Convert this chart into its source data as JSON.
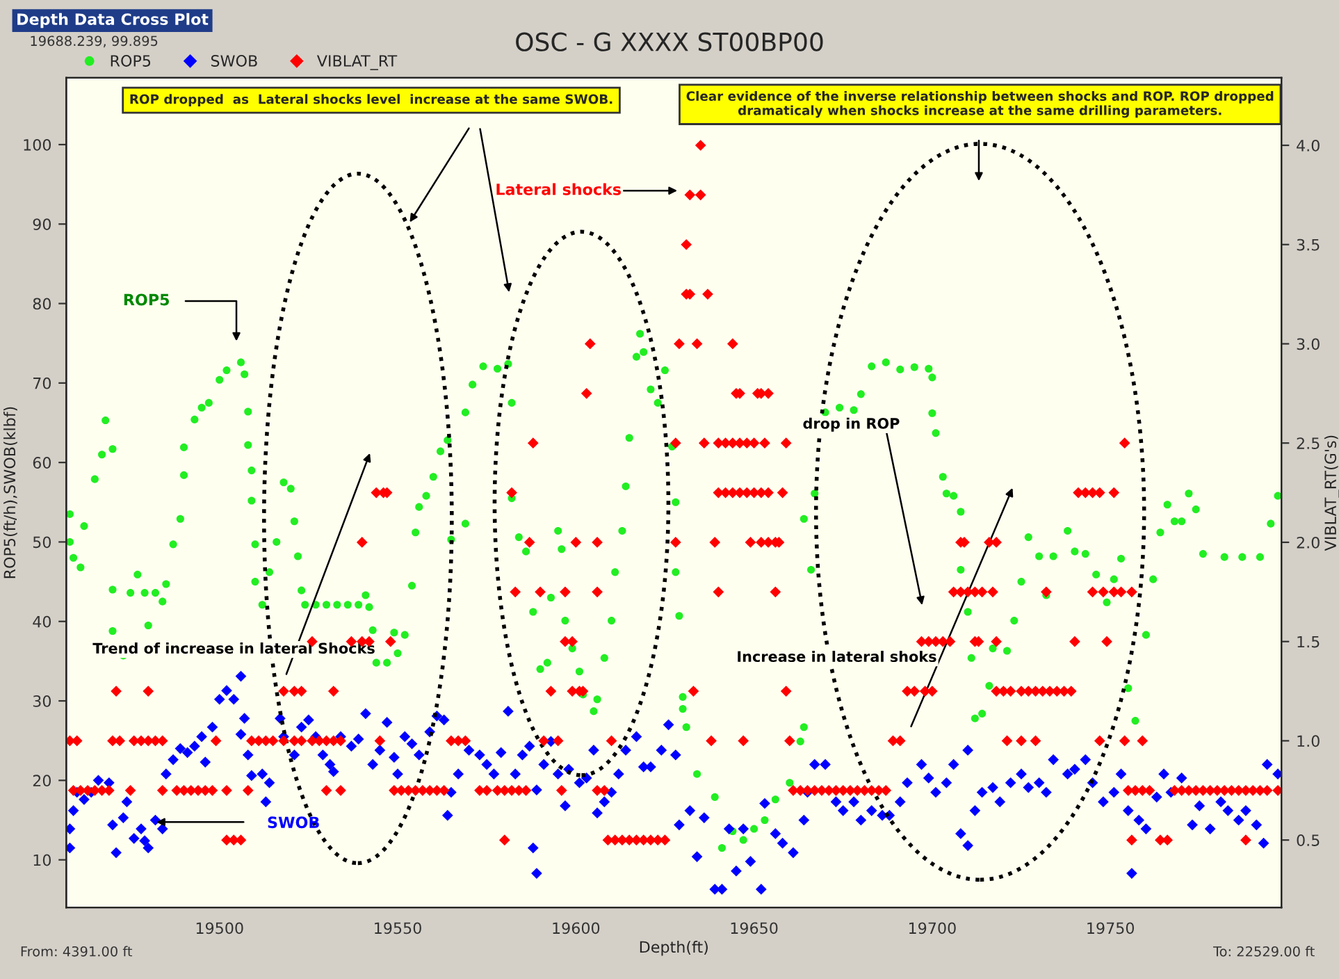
{
  "chart_data": {
    "type": "scatter",
    "title": "OSC - G XXXX ST00BP00",
    "xlabel": "Depth(ft)",
    "ylabel": "ROP5(ft/h),SWOB(klbf)",
    "y2label": "VIBLAT_RT(G's)",
    "xlim": [
      19457,
      19798
    ],
    "ylim": [
      4,
      108.4
    ],
    "y2lim": [
      0.16,
      4.34
    ],
    "xticks": [
      19500,
      19550,
      19600,
      19650,
      19700,
      19750
    ],
    "yticks": [
      10,
      20,
      30,
      40,
      50,
      60,
      70,
      80,
      90,
      100
    ],
    "y2ticks": [
      0.5,
      {
        "value": 1,
        "label": "1.0"
      },
      1.5,
      {
        "value": 2,
        "label": "2.0"
      },
      2.5,
      {
        "value": 3,
        "label": "3.0"
      },
      3.5,
      {
        "value": 4,
        "label": "4.0"
      }
    ],
    "grid": false,
    "legend": "top left",
    "annotations": [
      "Depth Data Cross Plot",
      "19688.239, 99.895",
      "From: 4391.00 ft",
      "To: 22529.00 ft",
      "ROP dropped  as  Lateral shocks level  increase at the same SWOB.",
      "Clear evidence of the inverse relationship between shocks and ROP. ROP dropped\ndramaticaly when shocks increase at the same drilling parameters.",
      "Lateral shocks",
      "ROP5",
      "SWOB",
      "Trend of increase in lateral Shocks",
      "drop in ROP",
      "Increase in lateral shoks"
    ],
    "series": [
      {
        "name": "ROP5",
        "color": "#22ee22",
        "marker": "circle",
        "axis": "y",
        "x": [
          19458,
          19458,
          19459,
          19461,
          19462,
          19465,
          19467,
          19468,
          19470,
          19470,
          19470,
          19473,
          19475,
          19477,
          19479,
          19480,
          19482,
          19484,
          19485,
          19487,
          19489,
          19490,
          19490,
          19493,
          19495,
          19497,
          19500,
          19502,
          19506,
          19507,
          19508,
          19508,
          19509,
          19509,
          19510,
          19510,
          19512,
          19514,
          19516,
          19518,
          19520,
          19521,
          19522,
          19523,
          19524,
          19527,
          19530,
          19533,
          19536,
          19539,
          19541,
          19542,
          19543,
          19544,
          19547,
          19549,
          19550,
          19552,
          19554,
          19555,
          19556,
          19558,
          19560,
          19562,
          19564,
          19565,
          19569,
          19569,
          19571,
          19574,
          19578,
          19581,
          19582,
          19582,
          19584,
          19586,
          19588,
          19590,
          19592,
          19593,
          19595,
          19596,
          19597,
          19599,
          19601,
          19602,
          19605,
          19606,
          19608,
          19610,
          19611,
          19613,
          19614,
          19615,
          19617,
          19618,
          19619,
          19621,
          19623,
          19625,
          19627,
          19628,
          19628,
          19629,
          19630,
          19630,
          19631,
          19634,
          19639,
          19641,
          19644,
          19647,
          19650,
          19653,
          19656,
          19660,
          19663,
          19664,
          19664,
          19666,
          19667,
          19670,
          19674,
          19678,
          19680,
          19683,
          19687,
          19691,
          19695,
          19699,
          19700,
          19700,
          19701,
          19703,
          19704,
          19706,
          19708,
          19708,
          19710,
          19711,
          19712,
          19714,
          19716,
          19717,
          19721,
          19723,
          19725,
          19727,
          19730,
          19732,
          19734,
          19738,
          19740,
          19743,
          19746,
          19749,
          19751,
          19753,
          19755,
          19757,
          19760,
          19762,
          19764,
          19766,
          19768,
          19770,
          19772,
          19774,
          19776,
          19782,
          19787,
          19792,
          19795,
          19797
        ],
        "values": [
          53.5,
          50,
          48,
          46.8,
          52,
          57.9,
          61,
          65.3,
          61.7,
          44,
          38.8,
          35.7,
          43.6,
          45.9,
          43.6,
          39.5,
          43.6,
          42.5,
          44.7,
          49.7,
          52.9,
          58.4,
          61.9,
          65.4,
          66.9,
          67.5,
          70.4,
          71.6,
          72.6,
          71.1,
          66.4,
          62.2,
          59,
          55.2,
          49.7,
          45,
          42.1,
          46.2,
          50,
          57.5,
          56.7,
          52.6,
          48.2,
          43.9,
          42.1,
          42.1,
          42.1,
          42.1,
          42.1,
          42.1,
          43.3,
          41.8,
          38.9,
          34.8,
          34.8,
          38.6,
          36,
          38.3,
          44.5,
          51.2,
          54.4,
          55.8,
          58.2,
          61.4,
          62.8,
          50.3,
          52.3,
          66.3,
          69.8,
          72.1,
          71.8,
          72.4,
          67.5,
          55.5,
          50.6,
          48.8,
          41.2,
          34,
          34.8,
          43,
          51.4,
          49.1,
          40.1,
          36.6,
          33.7,
          30.8,
          28.7,
          30.2,
          35.4,
          40.1,
          46.2,
          51.4,
          57,
          63.1,
          73.3,
          76.2,
          73.9,
          69.2,
          67.5,
          71.6,
          62,
          55,
          46.2,
          40.7,
          30.5,
          29,
          26.7,
          20.8,
          17.9,
          11.5,
          13.6,
          12.5,
          13.9,
          15,
          17.6,
          19.7,
          24.9,
          26.7,
          52.9,
          46.5,
          56.1,
          66.3,
          66.9,
          66.6,
          68.6,
          72.1,
          72.6,
          71.7,
          72,
          71.8,
          70.7,
          66.2,
          63.7,
          58.2,
          56.1,
          55.8,
          53.8,
          46.5,
          41.2,
          35.4,
          27.8,
          28.4,
          31.9,
          36.6,
          36.3,
          40.1,
          45,
          50.6,
          48.2,
          43.3,
          48.2,
          51.4,
          48.8,
          48.5,
          45.9,
          42.4,
          45.3,
          47.9,
          31.6,
          27.5,
          38.3,
          45.3,
          51.2,
          54.7,
          52.6,
          52.6,
          56.1,
          54.1,
          48.5,
          48.1,
          48.1,
          48.1,
          52.3,
          55.8
        ]
      },
      {
        "name": "SWOB",
        "color": "#0000ff",
        "marker": "diamond",
        "axis": "y",
        "x": [
          19458,
          19458,
          19459,
          19460,
          19462,
          19464,
          19466,
          19469,
          19470,
          19471,
          19473,
          19474,
          19476,
          19478,
          19479,
          19480,
          19482,
          19484,
          19485,
          19487,
          19489,
          19491,
          19493,
          19495,
          19496,
          19498,
          19500,
          19502,
          19504,
          19506,
          19506,
          19507,
          19508,
          19509,
          19512,
          19513,
          19514,
          19517,
          19518,
          19521,
          19523,
          19525,
          19527,
          19529,
          19531,
          19532,
          19534,
          19537,
          19539,
          19541,
          19543,
          19545,
          19547,
          19549,
          19550,
          19552,
          19554,
          19556,
          19559,
          19561,
          19563,
          19564,
          19565,
          19567,
          19570,
          19573,
          19575,
          19577,
          19579,
          19581,
          19583,
          19585,
          19587,
          19588,
          19589,
          19589,
          19591,
          19593,
          19595,
          19597,
          19598,
          19601,
          19603,
          19605,
          19606,
          19608,
          19610,
          19612,
          19614,
          19617,
          19619,
          19621,
          19624,
          19626,
          19628,
          19629,
          19632,
          19634,
          19636,
          19639,
          19641,
          19643,
          19645,
          19647,
          19649,
          19652,
          19653,
          19656,
          19658,
          19661,
          19664,
          19665,
          19667,
          19670,
          19673,
          19675,
          19678,
          19680,
          19683,
          19686,
          19688,
          19691,
          19693,
          19697,
          19699,
          19701,
          19704,
          19706,
          19708,
          19710,
          19710,
          19712,
          19714,
          19717,
          19719,
          19722,
          19725,
          19727,
          19730,
          19732,
          19734,
          19738,
          19740,
          19743,
          19745,
          19748,
          19751,
          19753,
          19755,
          19756,
          19758,
          19760,
          19763,
          19765,
          19767,
          19770,
          19773,
          19775,
          19778,
          19781,
          19783,
          19786,
          19788,
          19791,
          19793,
          19794,
          19797
        ],
        "values": [
          11.5,
          13.9,
          16.2,
          18.5,
          17.6,
          18.5,
          20,
          19.7,
          14.4,
          10.9,
          15.3,
          17.3,
          12.7,
          13.9,
          12.4,
          11.5,
          15,
          13.9,
          20.8,
          22.6,
          24,
          23.5,
          24.3,
          25.5,
          22.3,
          26.7,
          30.2,
          31.3,
          30.2,
          33.1,
          25.8,
          27.8,
          23.2,
          20.6,
          20.8,
          17.3,
          19.7,
          27.8,
          25.5,
          23.2,
          26.7,
          27.6,
          25.5,
          23.2,
          22,
          21.1,
          25.5,
          24.3,
          25.2,
          28.4,
          22,
          23.8,
          27.3,
          22.9,
          20.8,
          25.5,
          24.6,
          23.2,
          26.1,
          28.1,
          27.6,
          15.6,
          18.5,
          20.8,
          23.8,
          23.2,
          22,
          20.8,
          23.5,
          28.7,
          20.8,
          23.2,
          24.3,
          11.5,
          8.3,
          18.8,
          22,
          24.9,
          20.8,
          16.8,
          21.4,
          19.7,
          20.3,
          23.8,
          15.9,
          17.3,
          18.5,
          20.8,
          23.8,
          25.5,
          21.7,
          21.7,
          23.8,
          27,
          23.2,
          14.4,
          16.2,
          10.4,
          15.3,
          6.3,
          6.3,
          13.9,
          8.6,
          13.9,
          9.8,
          6.3,
          17.1,
          13.3,
          12.1,
          10.9,
          15,
          18.5,
          22,
          22,
          17.3,
          16.2,
          17.3,
          15,
          16.2,
          15.6,
          15.6,
          17.3,
          19.7,
          22,
          20.3,
          18.5,
          19.7,
          22,
          13.3,
          23.8,
          11.8,
          16.2,
          18.5,
          19.1,
          17.3,
          19.7,
          20.8,
          19.1,
          19.7,
          18.5,
          22.6,
          20.8,
          21.4,
          22.6,
          19.7,
          17.3,
          18.5,
          20.8,
          16.2,
          8.3,
          15,
          13.9,
          17.9,
          20.8,
          18.5,
          20.3,
          14.4,
          16.8,
          13.9,
          17.3,
          16.2,
          15,
          16.2,
          14.4,
          12.1,
          22,
          20.8
        ]
      },
      {
        "name": "VIBLAT_RT",
        "color": "#ff0000",
        "marker": "diamond",
        "axis": "y2",
        "x": [
          19458,
          19460,
          19470,
          19472,
          19476,
          19478,
          19480,
          19482,
          19484,
          19499,
          19509,
          19511,
          19513,
          19515,
          19518,
          19521,
          19523,
          19526,
          19528,
          19530,
          19532,
          19534,
          19545,
          19565,
          19567,
          19569,
          19591,
          19595,
          19610,
          19638,
          19647,
          19660,
          19689,
          19691,
          19721,
          19725,
          19729,
          19747,
          19754,
          19759,
          19459,
          19461,
          19463,
          19465,
          19467,
          19469,
          19475,
          19484,
          19488,
          19490,
          19492,
          19494,
          19496,
          19498,
          19502,
          19508,
          19530,
          19534,
          19549,
          19551,
          19553,
          19555,
          19557,
          19559,
          19561,
          19563,
          19573,
          19575,
          19578,
          19580,
          19582,
          19584,
          19586,
          19596,
          19606,
          19608,
          19661,
          19663,
          19665,
          19667,
          19669,
          19671,
          19673,
          19675,
          19677,
          19679,
          19681,
          19683,
          19685,
          19687,
          19755,
          19757,
          19759,
          19761,
          19768,
          19770,
          19772,
          19774,
          19776,
          19778,
          19780,
          19782,
          19784,
          19786,
          19788,
          19790,
          19792,
          19794,
          19797,
          19502,
          19504,
          19506,
          19580,
          19609,
          19611,
          19613,
          19615,
          19617,
          19619,
          19621,
          19623,
          19625,
          19756,
          19764,
          19766,
          19788,
          19471,
          19480,
          19518,
          19521,
          19523,
          19532,
          19593,
          19599,
          19601,
          19602,
          19633,
          19659,
          19693,
          19695,
          19698,
          19700,
          19718,
          19720,
          19722,
          19725,
          19727,
          19729,
          19731,
          19733,
          19735,
          19737,
          19739,
          19526,
          19537,
          19540,
          19542,
          19548,
          19597,
          19599,
          19697,
          19699,
          19701,
          19703,
          19705,
          19712,
          19713,
          19718,
          19740,
          19749,
          19583,
          19590,
          19597,
          19606,
          19640,
          19656,
          19706,
          19708,
          19710,
          19712,
          19714,
          19717,
          19732,
          19745,
          19748,
          19751,
          19753,
          19756,
          19540,
          19587,
          19600,
          19606,
          19628,
          19639,
          19649,
          19652,
          19654,
          19656,
          19657,
          19708,
          19709,
          19716,
          19718,
          19544,
          19546,
          19547,
          19582,
          19640,
          19642,
          19644,
          19646,
          19648,
          19650,
          19652,
          19654,
          19658,
          19741,
          19743,
          19745,
          19747,
          19751,
          19588,
          19628,
          19636,
          19640,
          19642,
          19644,
          19646,
          19648,
          19650,
          19653,
          19659,
          19754,
          19603,
          19645,
          19646,
          19651,
          19652,
          19654,
          19604,
          19629,
          19634,
          19644,
          19631,
          19632,
          19637,
          19631,
          19632,
          19635,
          19635
        ],
        "values": [
          1.0,
          1.0,
          1.0,
          1.0,
          1.0,
          1.0,
          1.0,
          1.0,
          1.0,
          1.0,
          1.0,
          1.0,
          1.0,
          1.0,
          1.0,
          1.0,
          1.0,
          1.0,
          1.0,
          1.0,
          1.0,
          1.0,
          1.0,
          1.0,
          1.0,
          1.0,
          1.0,
          1.0,
          1.0,
          1.0,
          1.0,
          1.0,
          1.0,
          1.0,
          1.0,
          1.0,
          1.0,
          1.0,
          1.0,
          1.0,
          0.75,
          0.75,
          0.75,
          0.75,
          0.75,
          0.75,
          0.75,
          0.75,
          0.75,
          0.75,
          0.75,
          0.75,
          0.75,
          0.75,
          0.75,
          0.75,
          0.75,
          0.75,
          0.75,
          0.75,
          0.75,
          0.75,
          0.75,
          0.75,
          0.75,
          0.75,
          0.75,
          0.75,
          0.75,
          0.75,
          0.75,
          0.75,
          0.75,
          0.75,
          0.75,
          0.75,
          0.75,
          0.75,
          0.75,
          0.75,
          0.75,
          0.75,
          0.75,
          0.75,
          0.75,
          0.75,
          0.75,
          0.75,
          0.75,
          0.75,
          0.75,
          0.75,
          0.75,
          0.75,
          0.75,
          0.75,
          0.75,
          0.75,
          0.75,
          0.75,
          0.75,
          0.75,
          0.75,
          0.75,
          0.75,
          0.75,
          0.75,
          0.75,
          0.75,
          0.5,
          0.5,
          0.5,
          0.5,
          0.5,
          0.5,
          0.5,
          0.5,
          0.5,
          0.5,
          0.5,
          0.5,
          0.5,
          0.5,
          0.5,
          0.5,
          0.5,
          1.25,
          1.25,
          1.25,
          1.25,
          1.25,
          1.25,
          1.25,
          1.25,
          1.25,
          1.25,
          1.25,
          1.25,
          1.25,
          1.25,
          1.25,
          1.25,
          1.25,
          1.25,
          1.25,
          1.25,
          1.25,
          1.25,
          1.25,
          1.25,
          1.25,
          1.25,
          1.25,
          1.5,
          1.5,
          1.5,
          1.5,
          1.5,
          1.5,
          1.5,
          1.5,
          1.5,
          1.5,
          1.5,
          1.5,
          1.5,
          1.5,
          1.5,
          1.5,
          1.5,
          1.75,
          1.75,
          1.75,
          1.75,
          1.75,
          1.75,
          1.75,
          1.75,
          1.75,
          1.75,
          1.75,
          1.75,
          1.75,
          1.75,
          1.75,
          1.75,
          1.75,
          1.75,
          2.0,
          2.0,
          2.0,
          2.0,
          2.0,
          2.0,
          2.0,
          2.0,
          2.0,
          2.0,
          2.0,
          2.0,
          2.0,
          2.0,
          2.0,
          2.25,
          2.25,
          2.25,
          2.25,
          2.25,
          2.25,
          2.25,
          2.25,
          2.25,
          2.25,
          2.25,
          2.25,
          2.25,
          2.25,
          2.25,
          2.25,
          2.25,
          2.25,
          2.5,
          2.5,
          2.5,
          2.5,
          2.5,
          2.5,
          2.5,
          2.5,
          2.5,
          2.5,
          2.5,
          2.5,
          2.75,
          2.75,
          2.75,
          2.75,
          2.75,
          2.75,
          3.0,
          3.0,
          3.0,
          3.0,
          3.25,
          3.25,
          3.25,
          3.5,
          3.75,
          3.75,
          4.0
        ]
      }
    ]
  }
}
